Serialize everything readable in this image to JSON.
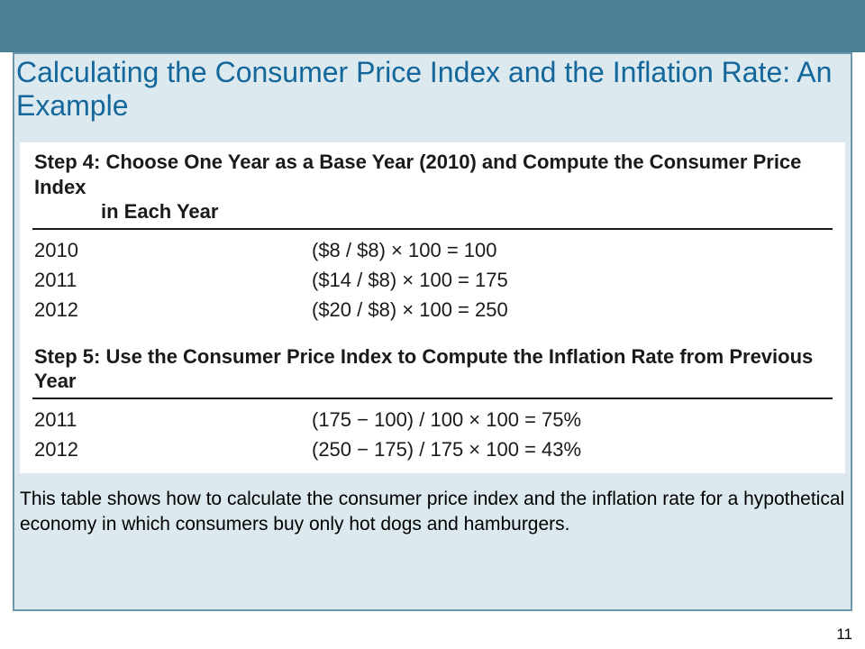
{
  "colors": {
    "band": "#4a7f95",
    "frame_border": "#6b97a9",
    "frame_fill": "#dce9ee",
    "title": "#14679b",
    "text": "#1a1a1a",
    "bg": "#ffffff"
  },
  "title": "Calculating the Consumer Price Index and the Inflation Rate: An Example",
  "step4": {
    "heading_line1": "Step 4: Choose One Year as a Base Year (2010) and Compute the Consumer Price Index",
    "heading_line2": "in Each Year",
    "rows": [
      {
        "year": "2010",
        "expr": "($8 / $8) × 100 = 100"
      },
      {
        "year": "2011",
        "expr": "($14 / $8) × 100 = 175"
      },
      {
        "year": "2012",
        "expr": "($20 / $8) × 100 = 250"
      }
    ]
  },
  "step5": {
    "heading": "Step 5: Use the Consumer Price Index to Compute the Inflation Rate from Previous Year",
    "rows": [
      {
        "year": "2011",
        "expr": "(175 − 100) / 100 × 100 = 75%"
      },
      {
        "year": "2012",
        "expr": "(250 − 175) / 175 × 100 = 43%"
      }
    ]
  },
  "caption": "This table shows how to calculate the consumer price index and the inflation rate for a hypothetical economy in which consumers buy only hot dogs and hamburgers.",
  "page_number": "11"
}
